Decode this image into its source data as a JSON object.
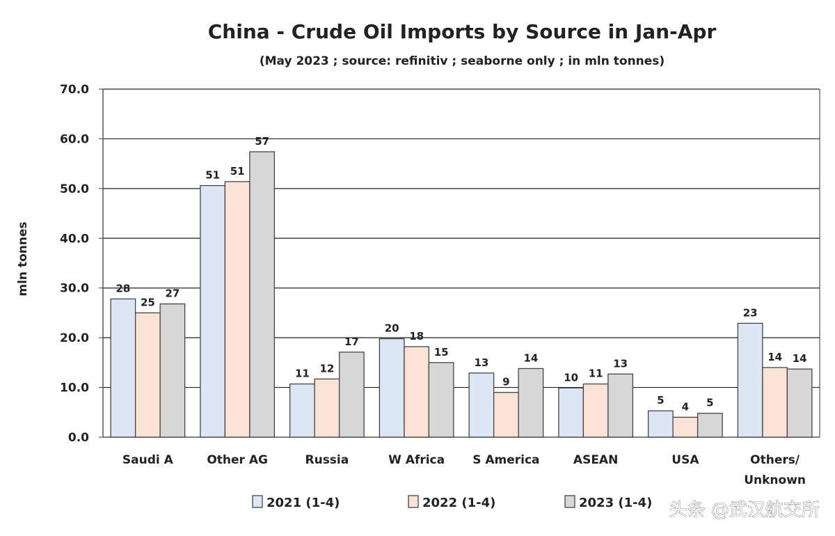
{
  "chart_data": {
    "type": "bar",
    "title": "China - Crude Oil Imports by Source in Jan-Apr",
    "subtitle": "(May 2023 ; source: refinitiv ; seaborne only ; in mln tonnes)",
    "ylabel": "mln tonnes",
    "xlabel": "",
    "ylim": [
      0,
      70
    ],
    "yticks": [
      "0.0",
      "10.0",
      "20.0",
      "30.0",
      "40.0",
      "50.0",
      "60.0",
      "70.0"
    ],
    "grid": true,
    "legend_position": "bottom",
    "categories": [
      [
        "Saudi A"
      ],
      [
        "Other AG"
      ],
      [
        "Russia"
      ],
      [
        "W Africa"
      ],
      [
        "S America"
      ],
      [
        "ASEAN"
      ],
      [
        "USA"
      ],
      [
        "Others/",
        "Unknown"
      ]
    ],
    "series": [
      {
        "name": "2021 (1-4)",
        "color": "#dde6f4",
        "values": [
          27.8,
          50.6,
          10.7,
          19.8,
          12.9,
          9.9,
          5.3,
          22.9
        ],
        "labels": [
          "28",
          "51",
          "11",
          "20",
          "13",
          "10",
          "5",
          "23"
        ]
      },
      {
        "name": "2022 (1-4)",
        "color": "#fae3d4",
        "values": [
          25.0,
          51.4,
          11.7,
          18.2,
          9.0,
          10.7,
          4.0,
          14.0
        ],
        "labels": [
          "25",
          "51",
          "12",
          "18",
          "9",
          "11",
          "4",
          "14"
        ]
      },
      {
        "name": "2023 (1-4)",
        "color": "#d7d7d7",
        "values": [
          26.8,
          57.4,
          17.1,
          15.0,
          13.8,
          12.7,
          4.8,
          13.7
        ],
        "labels": [
          "27",
          "57",
          "17",
          "15",
          "14",
          "13",
          "5",
          "14"
        ]
      }
    ]
  },
  "watermark": "头条 @武汉航交所"
}
